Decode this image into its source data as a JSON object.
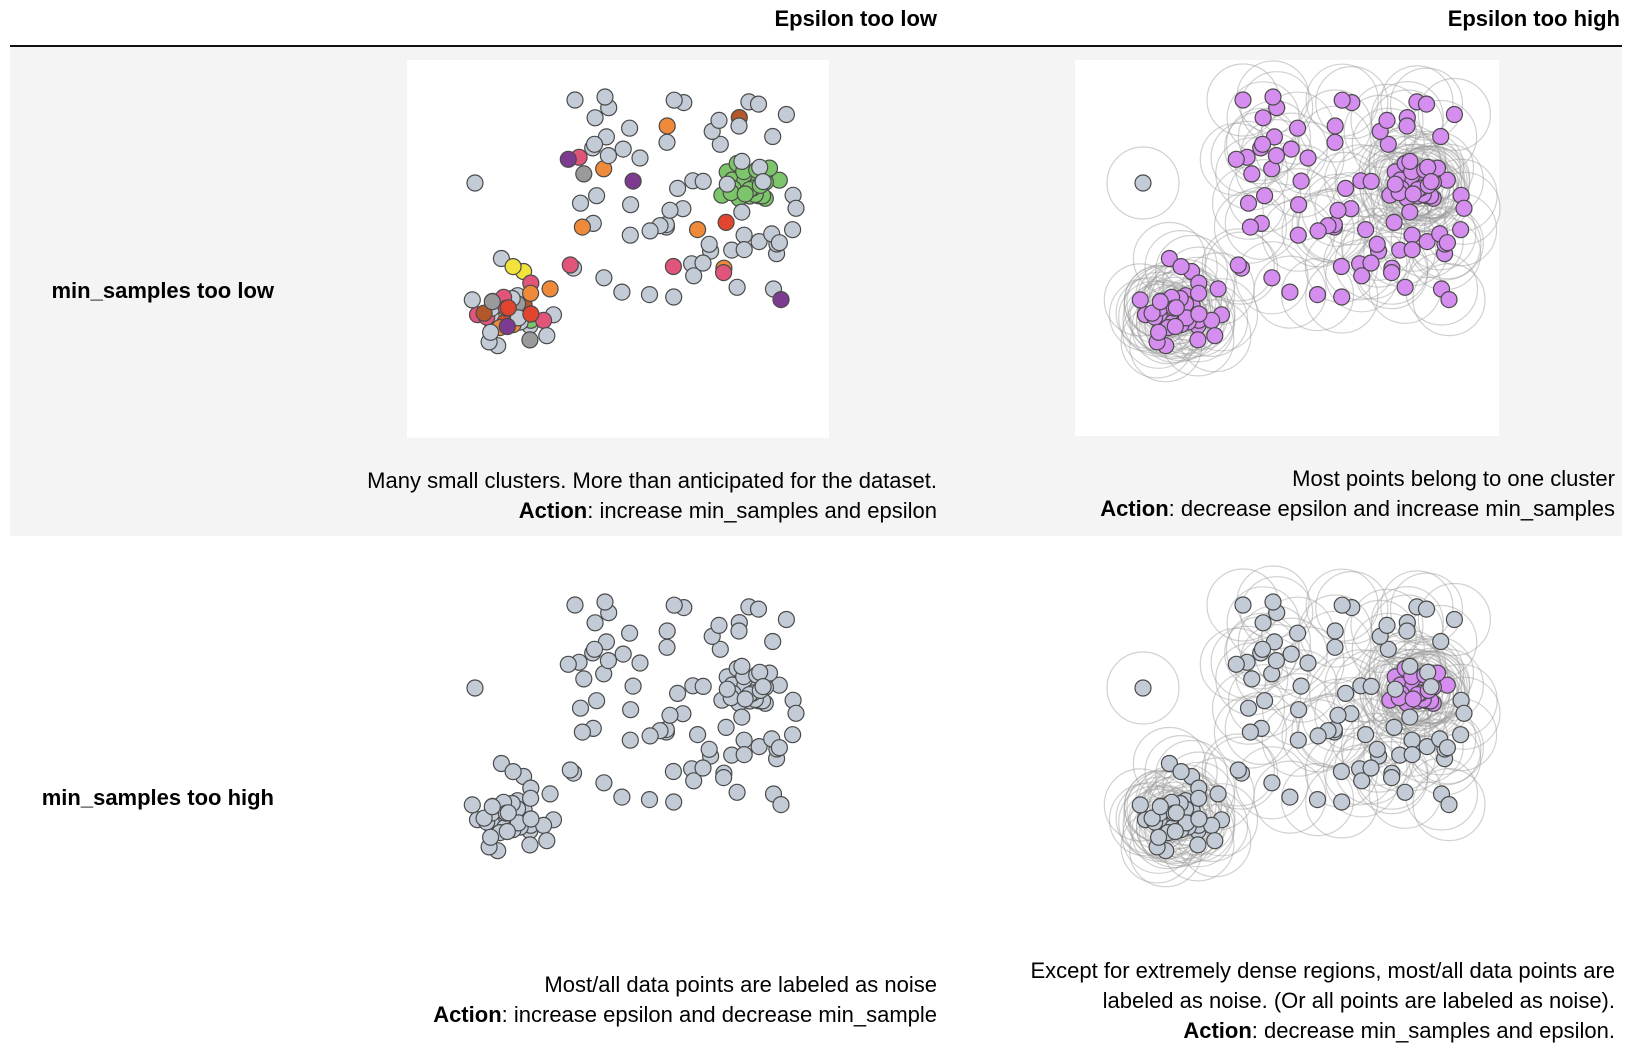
{
  "headers": {
    "eps_low": "Epsilon too low",
    "eps_high": "Epsilon too high"
  },
  "rows": {
    "min_low": "min_samples too low",
    "min_high": "min_samples too high"
  },
  "captions": {
    "tl_line1": "Many small clusters. More than anticipated for the dataset.",
    "tl_action_label": "Action",
    "tl_action_text": ": increase min_samples and epsilon",
    "tr_line1": "Most points belong to one cluster",
    "tr_action_label": "Action",
    "tr_action_text": ": decrease epsilon and increase min_samples",
    "bl_line1": "Most/all data points are labeled as noise",
    "bl_action_label": "Action",
    "bl_action_text": ": increase epsilon and decrease min_sample",
    "br_line1": "Except for extremely dense regions, most/all data points are",
    "br_line2": "labeled as noise. (Or all points are labeled as noise).",
    "br_action_label": "Action",
    "br_action_text": ": decrease min_samples and epsilon."
  },
  "colors": {
    "noise": "#c3ccd6",
    "cluster_purple": "#d58df0",
    "green": "#7cc56b",
    "orange": "#ee8a3a",
    "red": "#e1452e",
    "yellow": "#f1e23c",
    "magenta": "#e2557a",
    "dark_purple": "#7d3b8f",
    "brown": "#b3582b",
    "gray_cluster": "#9a9a9a"
  }
}
